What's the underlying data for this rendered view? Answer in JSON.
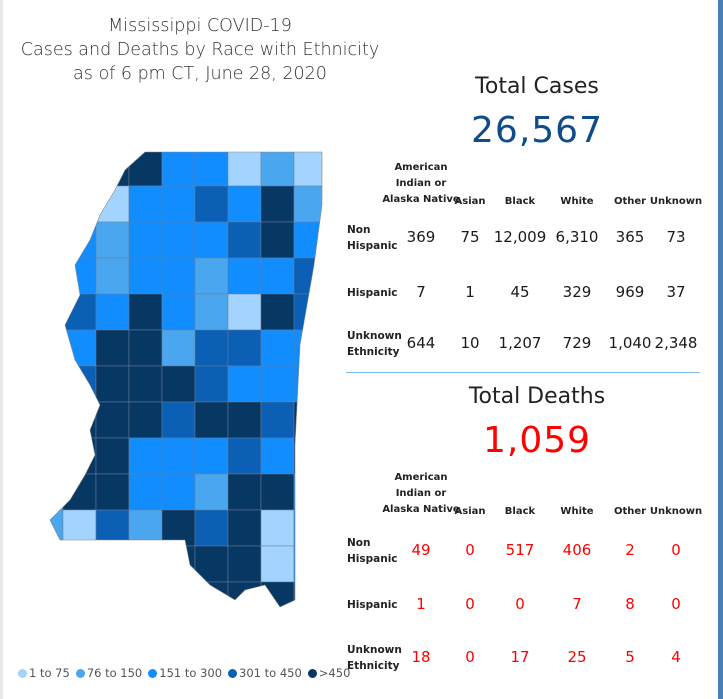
{
  "title": {
    "line1": "Mississippi COVID-19",
    "line2": "Cases and Deaths by Race with Ethnicity",
    "line3": "as of 6 pm CT, June 28, 2020"
  },
  "legend": [
    {
      "label": "1 to 75",
      "color": "#a3d3ff"
    },
    {
      "label": "76 to 150",
      "color": "#4aa6ee"
    },
    {
      "label": "151 to 300",
      "color": "#118dff"
    },
    {
      "label": "301 to 450",
      "color": "#0b5fb4"
    },
    {
      "label": ">450",
      "color": "#073763"
    }
  ],
  "columns": [
    "American Indian or Alaska Native",
    "Asian",
    "Black",
    "White",
    "Other",
    "Unknown"
  ],
  "column_lines": {
    "ai1": "American",
    "ai2": "Indian or",
    "ai3": "Alaska Native"
  },
  "rows": [
    {
      "l1": "Non",
      "l2": "Hispanic"
    },
    {
      "l1": "Hispanic",
      "l2": ""
    },
    {
      "l1": "Unknown",
      "l2": "Ethnicity"
    }
  ],
  "cases": {
    "label": "Total Cases",
    "total": "26,567",
    "color": "#0e4c8a",
    "values": [
      [
        "369",
        "75",
        "12,009",
        "6,310",
        "365",
        "73"
      ],
      [
        "7",
        "1",
        "45",
        "329",
        "969",
        "37"
      ],
      [
        "644",
        "10",
        "1,207",
        "729",
        "1,040",
        "2,348"
      ]
    ]
  },
  "deaths": {
    "label": "Total Deaths",
    "total": "1,059",
    "color": "#ff0000",
    "values": [
      [
        "49",
        "0",
        "517",
        "406",
        "2",
        "0"
      ],
      [
        "1",
        "0",
        "0",
        "7",
        "8",
        "0"
      ],
      [
        "18",
        "0",
        "17",
        "25",
        "5",
        "4"
      ]
    ]
  }
}
